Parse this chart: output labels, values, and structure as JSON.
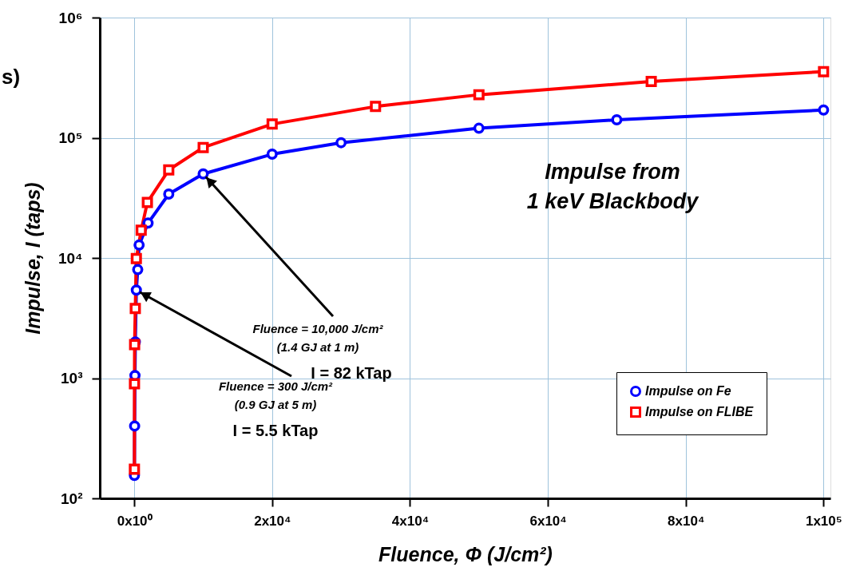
{
  "chart_data": {
    "type": "line",
    "xlabel": "Fluence, Φ (J/cm²)",
    "ylabel": "Impulse, I (taps)",
    "xlim": [
      -5000,
      101000
    ],
    "ylim": [
      100,
      1000000
    ],
    "xticks": [
      {
        "value": 0,
        "label": "0x10⁰"
      },
      {
        "value": 20000,
        "label": "2x10⁴"
      },
      {
        "value": 40000,
        "label": "4x10⁴"
      },
      {
        "value": 60000,
        "label": "6x10⁴"
      },
      {
        "value": 80000,
        "label": "8x10⁴"
      },
      {
        "value": 100000,
        "label": "1x10⁵"
      }
    ],
    "yticks": [
      {
        "value": 100,
        "label": "10²"
      },
      {
        "value": 1000,
        "label": "10³"
      },
      {
        "value": 10000,
        "label": "10⁴"
      },
      {
        "value": 100000,
        "label": "10⁵"
      },
      {
        "value": 1000000,
        "label": "10⁶"
      }
    ],
    "log": "y",
    "grid": true,
    "legend": "bottom right",
    "line_style": "solid",
    "series": [
      {
        "name": "Impulse on Fe",
        "color": "#0000ff",
        "marker": "circle",
        "x": [
          20,
          50,
          100,
          150,
          300,
          500,
          700,
          2000,
          5000,
          10000,
          20000,
          30000,
          50000,
          70000,
          100000
        ],
        "values": [
          155,
          400,
          1050,
          2000,
          5400,
          8000,
          12800,
          19500,
          34000,
          50000,
          73000,
          91000,
          120000,
          141000,
          170000
        ]
      },
      {
        "name": "Impulse on FLIBE",
        "color": "#ff0000",
        "marker": "square",
        "x": [
          20,
          30,
          50,
          150,
          300,
          1000,
          1900,
          5000,
          10000,
          20000,
          35000,
          50000,
          75000,
          100000
        ],
        "values": [
          175,
          900,
          1900,
          3800,
          9900,
          17000,
          29000,
          54000,
          83000,
          130000,
          182000,
          228000,
          294000,
          355000
        ]
      }
    ],
    "annotations": [
      "s)",
      "Impulse from\n1 keV Blackbody",
      {
        "text": "Fluence = 10,000 J/cm²\n(1.4 GJ at 1 m)\nI = 82 kTap",
        "x": 10000,
        "y": 50000
      },
      {
        "text": "Fluence = 300 J/cm²\n(0.9 GJ at 5 m)\nI = 5.5 kTap",
        "x": 300,
        "y": 5400
      }
    ]
  }
}
